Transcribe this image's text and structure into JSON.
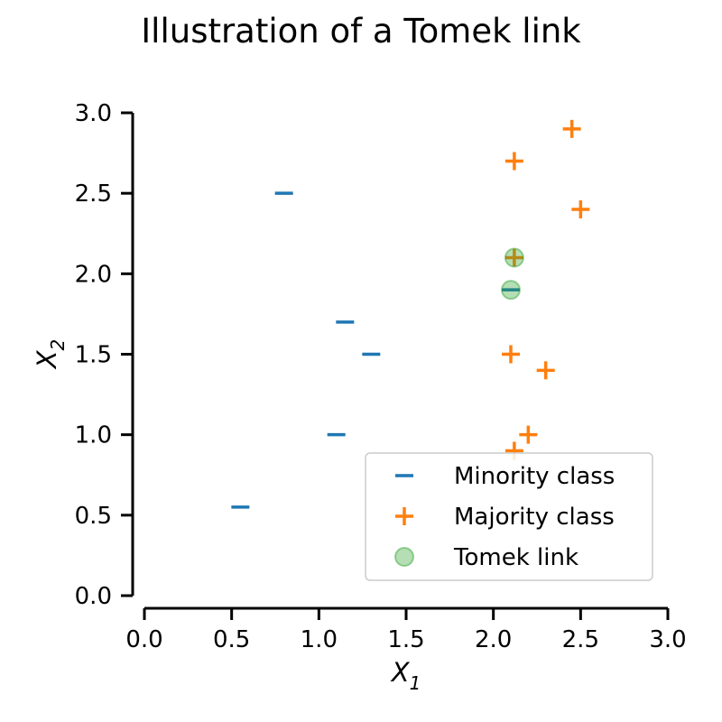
{
  "chart_data": {
    "type": "scatter",
    "title": "Illustration of a Tomek link",
    "xlabel": "X",
    "xlabel_sub": "1",
    "ylabel": "X",
    "ylabel_sub": "2",
    "xlim": [
      0.0,
      3.0
    ],
    "ylim": [
      0.0,
      3.0
    ],
    "xticks": [
      "0.0",
      "0.5",
      "1.0",
      "1.5",
      "2.0",
      "2.5",
      "3.0"
    ],
    "yticks": [
      "0.0",
      "0.5",
      "1.0",
      "1.5",
      "2.0",
      "2.5",
      "3.0"
    ],
    "grid": false,
    "legend_position": "bottom-right",
    "series": [
      {
        "name": "Minority class",
        "marker": "minus",
        "color": "#1f77b4",
        "points": [
          [
            0.55,
            0.55
          ],
          [
            0.8,
            2.5
          ],
          [
            1.15,
            1.7
          ],
          [
            1.3,
            1.5
          ],
          [
            1.1,
            1.0
          ],
          [
            2.1,
            1.9
          ]
        ]
      },
      {
        "name": "Majority class",
        "marker": "plus",
        "color": "#ff7f0e",
        "points": [
          [
            2.45,
            2.9
          ],
          [
            2.12,
            2.7
          ],
          [
            2.5,
            2.4
          ],
          [
            2.12,
            2.1
          ],
          [
            2.1,
            1.5
          ],
          [
            2.3,
            1.4
          ],
          [
            2.2,
            1.0
          ],
          [
            2.12,
            0.9
          ]
        ]
      },
      {
        "name": "Tomek link",
        "marker": "circle",
        "color": "#2ca02c",
        "points": [
          [
            2.12,
            2.1
          ],
          [
            2.1,
            1.9
          ]
        ]
      }
    ]
  }
}
